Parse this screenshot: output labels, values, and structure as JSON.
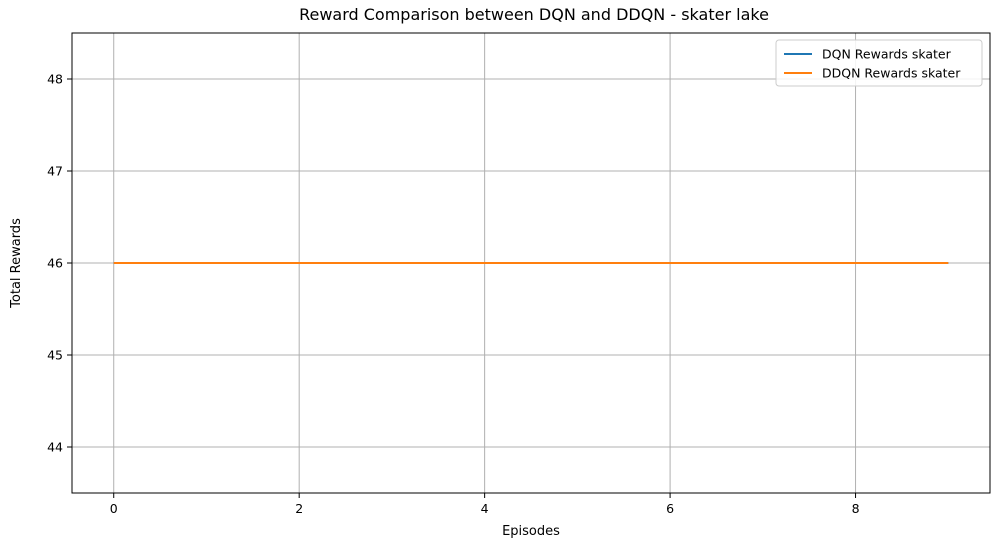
{
  "chart_data": {
    "type": "line",
    "title": "Reward Comparison between DQN and DDQN - skater lake",
    "xlabel": "Episodes",
    "ylabel": "Total Rewards",
    "x": [
      0,
      1,
      2,
      3,
      4,
      5,
      6,
      7,
      8,
      9
    ],
    "xlim": [
      -0.45,
      9.45
    ],
    "ylim": [
      43.5,
      48.5
    ],
    "xticks": [
      0,
      2,
      4,
      6,
      8
    ],
    "yticks": [
      44,
      45,
      46,
      47,
      48
    ],
    "grid": true,
    "legend_position": "top-right",
    "series": [
      {
        "name": "DQN Rewards skater",
        "color": "#1f77b4",
        "values": [
          46,
          46,
          46,
          46,
          46,
          46,
          46,
          46,
          46,
          46
        ]
      },
      {
        "name": "DDQN Rewards skater",
        "color": "#ff7f0e",
        "values": [
          46,
          46,
          46,
          46,
          46,
          46,
          46,
          46,
          46,
          46
        ]
      }
    ]
  }
}
